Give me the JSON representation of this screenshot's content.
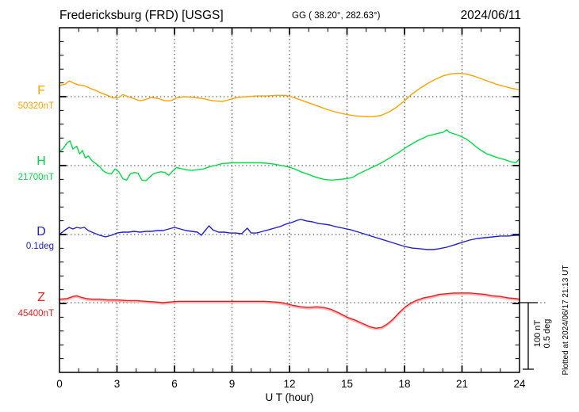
{
  "header": {
    "title": "Fredericksburg (FRD)  [USGS]",
    "coords": "GG ( 38.20°, 282.63°)",
    "date": "2024/06/11"
  },
  "channels": [
    {
      "id": "F",
      "label": "F",
      "baseline_label": "50320nT",
      "unit": "nT",
      "color": "#ffa200"
    },
    {
      "id": "H",
      "label": "H",
      "baseline_label": "21700nT",
      "unit": "nT",
      "color": "#00dd44"
    },
    {
      "id": "D",
      "label": "D",
      "baseline_label": "0.1deg",
      "unit": "deg",
      "color": "#2020cc"
    },
    {
      "id": "Z",
      "label": "Z",
      "baseline_label": "45400nT",
      "unit": "nT",
      "color": "#e62020"
    }
  ],
  "axis": {
    "xlabel": "U T (hour)",
    "tick_labels": [
      "0",
      "3",
      "6",
      "9",
      "12",
      "15",
      "18",
      "21",
      "24"
    ]
  },
  "scale_bar": {
    "label_nt": "100 nT",
    "label_deg": "0.5 deg"
  },
  "footer_note": "Plotted at 2024/06/17 21:13 UT",
  "chart_data": {
    "type": "line",
    "title": "Fredericksburg (FRD) [USGS] magnetogram 2024/06/11",
    "xlabel": "U T (hour)",
    "x_range": [
      0,
      24
    ],
    "x_major_ticks": [
      0,
      3,
      6,
      9,
      12,
      15,
      18,
      21,
      24
    ],
    "grid": "dotted vertical at 3h intervals, dotted horizontal at each channel baseline",
    "legend_position": "left margin channel labels",
    "division_scale": {
      "nT_per_division": 100,
      "deg_per_division": 0.5
    },
    "series": [
      {
        "name": "F",
        "unit": "nT",
        "baseline_value": "50320nT",
        "points": [
          [
            0,
            16
          ],
          [
            0.3,
            18
          ],
          [
            0.5,
            23
          ],
          [
            0.8,
            19
          ],
          [
            1.0,
            17
          ],
          [
            1.3,
            16
          ],
          [
            1.6,
            12
          ],
          [
            1.9,
            9
          ],
          [
            2.2,
            5
          ],
          [
            2.5,
            2
          ],
          [
            2.8,
            -2
          ],
          [
            3.1,
            -1
          ],
          [
            3.3,
            3
          ],
          [
            3.6,
            0
          ],
          [
            3.9,
            -3
          ],
          [
            4.2,
            -6
          ],
          [
            4.5,
            -4
          ],
          [
            4.8,
            -1
          ],
          [
            5.2,
            -3
          ],
          [
            5.5,
            -6
          ],
          [
            5.8,
            -6
          ],
          [
            6.1,
            -2
          ],
          [
            6.5,
            0
          ],
          [
            7.0,
            -1
          ],
          [
            7.5,
            -3
          ],
          [
            8.0,
            -6
          ],
          [
            8.5,
            -7
          ],
          [
            8.9,
            -4
          ],
          [
            9.3,
            -1
          ],
          [
            9.8,
            0
          ],
          [
            10.3,
            1
          ],
          [
            10.8,
            1
          ],
          [
            11.3,
            2
          ],
          [
            11.8,
            2
          ],
          [
            12.2,
            -1
          ],
          [
            12.6,
            -5
          ],
          [
            13.0,
            -9
          ],
          [
            13.5,
            -14
          ],
          [
            14.0,
            -19
          ],
          [
            14.5,
            -23
          ],
          [
            15.0,
            -26
          ],
          [
            15.5,
            -28
          ],
          [
            16.0,
            -29
          ],
          [
            16.4,
            -29
          ],
          [
            16.8,
            -27
          ],
          [
            17.2,
            -22
          ],
          [
            17.6,
            -15
          ],
          [
            18.0,
            -6
          ],
          [
            18.4,
            4
          ],
          [
            18.8,
            12
          ],
          [
            19.2,
            19
          ],
          [
            19.6,
            25
          ],
          [
            20.0,
            30
          ],
          [
            20.4,
            33
          ],
          [
            20.8,
            34
          ],
          [
            21.2,
            33
          ],
          [
            21.6,
            30
          ],
          [
            22.0,
            26
          ],
          [
            22.4,
            22
          ],
          [
            22.8,
            18
          ],
          [
            23.2,
            15
          ],
          [
            23.6,
            12
          ],
          [
            24,
            10
          ]
        ]
      },
      {
        "name": "H",
        "unit": "nT",
        "baseline_value": "21700nT",
        "points": [
          [
            0,
            20
          ],
          [
            0.2,
            25
          ],
          [
            0.4,
            33
          ],
          [
            0.55,
            36
          ],
          [
            0.7,
            24
          ],
          [
            0.9,
            28
          ],
          [
            1.05,
            17
          ],
          [
            1.2,
            22
          ],
          [
            1.35,
            11
          ],
          [
            1.5,
            14
          ],
          [
            1.7,
            7
          ],
          [
            1.9,
            3
          ],
          [
            2.1,
            -2
          ],
          [
            2.3,
            -8
          ],
          [
            2.5,
            -11
          ],
          [
            2.7,
            -12
          ],
          [
            2.9,
            -5
          ],
          [
            3.1,
            -9
          ],
          [
            3.3,
            -19
          ],
          [
            3.5,
            -21
          ],
          [
            3.7,
            -12
          ],
          [
            3.9,
            -10
          ],
          [
            4.1,
            -11
          ],
          [
            4.3,
            -21
          ],
          [
            4.5,
            -22
          ],
          [
            4.7,
            -17
          ],
          [
            4.9,
            -12
          ],
          [
            5.1,
            -10
          ],
          [
            5.3,
            -9
          ],
          [
            5.5,
            -10
          ],
          [
            5.7,
            -14
          ],
          [
            5.9,
            -8
          ],
          [
            6.1,
            -3
          ],
          [
            6.3,
            -4
          ],
          [
            6.6,
            -6
          ],
          [
            6.9,
            -7
          ],
          [
            7.2,
            -6
          ],
          [
            7.5,
            -5
          ],
          [
            7.8,
            -2
          ],
          [
            8.1,
            0
          ],
          [
            8.5,
            3
          ],
          [
            9.0,
            4
          ],
          [
            9.5,
            4
          ],
          [
            10.0,
            4
          ],
          [
            10.5,
            4
          ],
          [
            11.0,
            3
          ],
          [
            11.4,
            1
          ],
          [
            11.8,
            -1
          ],
          [
            12.2,
            -4
          ],
          [
            12.6,
            -9
          ],
          [
            13.0,
            -13
          ],
          [
            13.4,
            -17
          ],
          [
            13.8,
            -20
          ],
          [
            14.2,
            -21
          ],
          [
            14.6,
            -20
          ],
          [
            15.0,
            -19
          ],
          [
            15.3,
            -17
          ],
          [
            15.6,
            -12
          ],
          [
            15.9,
            -8
          ],
          [
            16.2,
            -4
          ],
          [
            16.5,
            0
          ],
          [
            16.8,
            4
          ],
          [
            17.1,
            9
          ],
          [
            17.4,
            14
          ],
          [
            17.7,
            19
          ],
          [
            18.0,
            25
          ],
          [
            18.3,
            30
          ],
          [
            18.6,
            35
          ],
          [
            18.9,
            39
          ],
          [
            19.2,
            43
          ],
          [
            19.5,
            45
          ],
          [
            19.8,
            47
          ],
          [
            20.0,
            48
          ],
          [
            20.2,
            52
          ],
          [
            20.35,
            48
          ],
          [
            20.6,
            46
          ],
          [
            20.9,
            43
          ],
          [
            21.2,
            39
          ],
          [
            21.5,
            33
          ],
          [
            21.7,
            28
          ],
          [
            22.0,
            22
          ],
          [
            22.3,
            17
          ],
          [
            22.6,
            14
          ],
          [
            22.9,
            11
          ],
          [
            23.2,
            9
          ],
          [
            23.5,
            6
          ],
          [
            23.8,
            4
          ],
          [
            24,
            10
          ]
        ]
      },
      {
        "name": "D",
        "unit": "deg",
        "baseline_value": "0.1deg",
        "points": [
          [
            0,
            0
          ],
          [
            0.3,
            0.034
          ],
          [
            0.5,
            0.052
          ],
          [
            0.7,
            0.04
          ],
          [
            0.9,
            0.052
          ],
          [
            1.1,
            0.046
          ],
          [
            1.3,
            0.052
          ],
          [
            1.5,
            0.029
          ],
          [
            1.8,
            0.011
          ],
          [
            2.1,
            -0.006
          ],
          [
            2.4,
            -0.017
          ],
          [
            2.7,
            -0.006
          ],
          [
            3.0,
            0.011
          ],
          [
            3.3,
            0.017
          ],
          [
            3.6,
            0.017
          ],
          [
            3.9,
            0.023
          ],
          [
            4.2,
            0.017
          ],
          [
            4.5,
            0.023
          ],
          [
            4.8,
            0.023
          ],
          [
            5.1,
            0.029
          ],
          [
            5.4,
            0.029
          ],
          [
            5.7,
            0.04
          ],
          [
            6.0,
            0.052
          ],
          [
            6.3,
            0.04
          ],
          [
            6.6,
            0.029
          ],
          [
            6.9,
            0.023
          ],
          [
            7.2,
            0.017
          ],
          [
            7.4,
            -0.006
          ],
          [
            7.6,
            0.029
          ],
          [
            7.8,
            0.063
          ],
          [
            8.0,
            0.034
          ],
          [
            8.3,
            0.017
          ],
          [
            8.6,
            0.017
          ],
          [
            8.9,
            0.011
          ],
          [
            9.2,
            0.011
          ],
          [
            9.5,
            0.006
          ],
          [
            9.8,
            0.046
          ],
          [
            10.0,
            0.011
          ],
          [
            10.3,
            0.011
          ],
          [
            10.6,
            0.023
          ],
          [
            10.9,
            0.034
          ],
          [
            11.2,
            0.046
          ],
          [
            11.5,
            0.057
          ],
          [
            11.8,
            0.075
          ],
          [
            12.1,
            0.086
          ],
          [
            12.4,
            0.103
          ],
          [
            12.6,
            0.109
          ],
          [
            12.9,
            0.098
          ],
          [
            13.2,
            0.092
          ],
          [
            13.5,
            0.08
          ],
          [
            13.8,
            0.075
          ],
          [
            14.1,
            0.069
          ],
          [
            14.4,
            0.057
          ],
          [
            14.8,
            0.046
          ],
          [
            15.2,
            0.034
          ],
          [
            15.6,
            0.017
          ],
          [
            16.0,
            0
          ],
          [
            16.4,
            -0.017
          ],
          [
            16.8,
            -0.034
          ],
          [
            17.2,
            -0.052
          ],
          [
            17.6,
            -0.069
          ],
          [
            18.0,
            -0.086
          ],
          [
            18.4,
            -0.098
          ],
          [
            18.8,
            -0.103
          ],
          [
            19.2,
            -0.109
          ],
          [
            19.5,
            -0.109
          ],
          [
            19.8,
            -0.103
          ],
          [
            20.2,
            -0.092
          ],
          [
            20.6,
            -0.075
          ],
          [
            21.0,
            -0.057
          ],
          [
            21.4,
            -0.04
          ],
          [
            21.8,
            -0.029
          ],
          [
            22.2,
            -0.023
          ],
          [
            22.6,
            -0.017
          ],
          [
            23.0,
            -0.011
          ],
          [
            23.4,
            -0.011
          ],
          [
            23.8,
            -0.006
          ],
          [
            24,
            -0.006
          ]
        ]
      },
      {
        "name": "Z",
        "unit": "nT",
        "baseline_value": "45400nT",
        "points": [
          [
            0,
            5
          ],
          [
            0.4,
            6
          ],
          [
            0.7,
            9
          ],
          [
            0.9,
            10
          ],
          [
            1.1,
            8
          ],
          [
            1.4,
            6
          ],
          [
            1.7,
            5
          ],
          [
            2.1,
            5
          ],
          [
            2.5,
            4
          ],
          [
            3.0,
            4
          ],
          [
            3.5,
            3
          ],
          [
            4.0,
            3
          ],
          [
            4.5,
            2
          ],
          [
            5.0,
            1
          ],
          [
            5.4,
            0
          ],
          [
            5.8,
            1
          ],
          [
            6.2,
            2
          ],
          [
            6.7,
            2
          ],
          [
            7.2,
            2
          ],
          [
            7.7,
            2
          ],
          [
            8.2,
            2
          ],
          [
            8.7,
            2
          ],
          [
            9.2,
            2
          ],
          [
            9.7,
            2
          ],
          [
            10.2,
            2
          ],
          [
            10.7,
            2
          ],
          [
            11.2,
            1
          ],
          [
            11.6,
            0
          ],
          [
            11.9,
            -2
          ],
          [
            12.2,
            -4
          ],
          [
            12.6,
            -6
          ],
          [
            13.0,
            -7
          ],
          [
            13.4,
            -6
          ],
          [
            13.8,
            -7
          ],
          [
            14.2,
            -10
          ],
          [
            14.6,
            -15
          ],
          [
            15.0,
            -21
          ],
          [
            15.4,
            -25
          ],
          [
            15.8,
            -30
          ],
          [
            16.2,
            -35
          ],
          [
            16.5,
            -37
          ],
          [
            16.8,
            -36
          ],
          [
            17.1,
            -31
          ],
          [
            17.4,
            -24
          ],
          [
            17.7,
            -15
          ],
          [
            18.0,
            -7
          ],
          [
            18.3,
            -1
          ],
          [
            18.6,
            3
          ],
          [
            19.0,
            7
          ],
          [
            19.4,
            9
          ],
          [
            19.8,
            12
          ],
          [
            20.2,
            13
          ],
          [
            20.6,
            14
          ],
          [
            21.0,
            14
          ],
          [
            21.4,
            14
          ],
          [
            21.8,
            13
          ],
          [
            22.2,
            12
          ],
          [
            22.6,
            10
          ],
          [
            23.0,
            9
          ],
          [
            23.4,
            7
          ],
          [
            23.8,
            6
          ],
          [
            24,
            5
          ]
        ]
      }
    ]
  }
}
